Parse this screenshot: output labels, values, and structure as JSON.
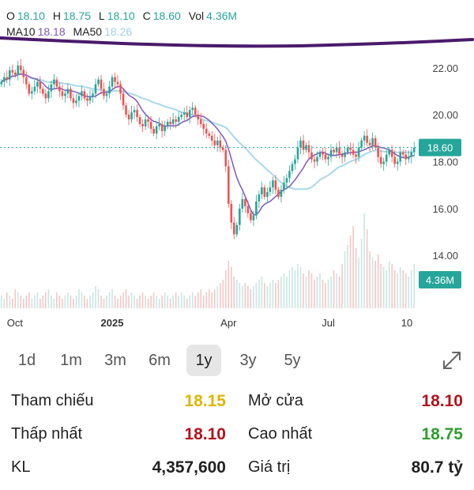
{
  "ohlc": {
    "o_label": "O",
    "o": "18.10",
    "h_label": "H",
    "h": "18.75",
    "l_label": "L",
    "l": "18.10",
    "c_label": "C",
    "c": "18.60",
    "vol_label": "Vol",
    "vol": "4.36M",
    "ma10_label": "MA10",
    "ma10": "18.18",
    "ma50_label": "MA50",
    "ma50": "18.26"
  },
  "colors": {
    "up": "#26a69a",
    "down": "#ef5350",
    "ma10": "#7e57c2",
    "ma50": "#a9d8ea",
    "annotation": "#4a1a6b"
  },
  "chart_data": {
    "type": "candlestick",
    "y_ticks": [
      "22.00",
      "20.00",
      "18.00",
      "16.00",
      "14.00"
    ],
    "ylim": [
      13.5,
      22.6
    ],
    "x_ticks": [
      "Oct",
      "2025",
      "Apr",
      "Jul",
      "10"
    ],
    "last_price_label": "18.60",
    "volume_label": "4.36M",
    "close": [
      21.4,
      21.6,
      21.5,
      21.9,
      21.8,
      21.7,
      22.1,
      21.9,
      21.6,
      21.3,
      20.9,
      21.0,
      21.2,
      21.4,
      21.1,
      20.9,
      20.7,
      21.0,
      21.3,
      21.5,
      21.2,
      21.0,
      20.8,
      20.9,
      21.1,
      20.7,
      20.5,
      20.6,
      20.8,
      21.0,
      20.7,
      20.6,
      20.8,
      20.9,
      21.3,
      21.5,
      21.1,
      20.8,
      20.9,
      21.2,
      21.6,
      21.4,
      21.3,
      20.9,
      20.4,
      20.0,
      19.8,
      20.1,
      20.2,
      19.9,
      19.6,
      19.5,
      19.8,
      19.7,
      19.4,
      19.2,
      19.5,
      19.6,
      19.3,
      19.5,
      19.7,
      19.6,
      19.8,
      19.7,
      19.9,
      20.0,
      20.1,
      19.9,
      20.2,
      20.3,
      20.0,
      19.8,
      19.6,
      19.4,
      19.2,
      19.1,
      18.9,
      18.7,
      18.9,
      18.6,
      18.5,
      17.8,
      16.2,
      15.4,
      14.9,
      15.3,
      16.0,
      16.4,
      16.1,
      15.8,
      15.5,
      15.7,
      16.3,
      16.6,
      16.9,
      16.5,
      16.7,
      16.9,
      17.2,
      16.8,
      16.5,
      16.8,
      17.1,
      17.3,
      17.6,
      17.9,
      18.1,
      18.6,
      18.9,
      18.5,
      18.7,
      18.4,
      18.1,
      18.0,
      18.2,
      18.4,
      18.3,
      18.1,
      18.2,
      18.5,
      18.4,
      18.6,
      18.3,
      18.2,
      18.4,
      18.6,
      18.5,
      18.3,
      18.2,
      18.6,
      18.9,
      19.1,
      18.8,
      18.7,
      19.0,
      18.6,
      18.2,
      17.9,
      18.0,
      18.3,
      18.5,
      18.2,
      17.9,
      18.0,
      18.4,
      18.3,
      18.1,
      18.2,
      18.4,
      18.6
    ],
    "volume": [
      0.4,
      0.3,
      0.5,
      0.4,
      0.3,
      0.6,
      0.5,
      0.4,
      0.3,
      0.4,
      0.5,
      0.3,
      0.4,
      0.5,
      0.3,
      0.4,
      0.5,
      0.6,
      0.4,
      0.3,
      0.5,
      0.4,
      0.3,
      0.4,
      0.5,
      0.4,
      0.3,
      0.4,
      0.6,
      0.5,
      0.4,
      0.3,
      0.4,
      0.5,
      0.7,
      0.6,
      0.4,
      0.3,
      0.4,
      0.5,
      0.6,
      0.4,
      0.3,
      0.4,
      0.5,
      0.6,
      0.4,
      0.5,
      0.4,
      0.3,
      0.4,
      0.5,
      0.4,
      0.3,
      0.4,
      0.5,
      0.4,
      0.3,
      0.4,
      0.5,
      0.4,
      0.3,
      0.4,
      0.5,
      0.4,
      0.5,
      0.4,
      0.3,
      0.4,
      0.5,
      0.4,
      0.5,
      0.6,
      0.4,
      0.5,
      0.6,
      0.5,
      0.6,
      0.7,
      0.8,
      0.9,
      1.2,
      1.5,
      1.3,
      1.0,
      0.9,
      0.8,
      0.7,
      0.8,
      0.7,
      0.6,
      0.7,
      0.8,
      0.9,
      1.0,
      0.8,
      0.7,
      0.8,
      0.9,
      0.8,
      0.9,
      1.0,
      1.1,
      1.0,
      1.2,
      1.3,
      1.2,
      1.4,
      1.3,
      1.1,
      1.0,
      1.2,
      1.1,
      0.9,
      1.0,
      1.1,
      0.9,
      0.8,
      0.9,
      1.0,
      1.2,
      1.1,
      1.0,
      1.4,
      1.8,
      2.0,
      2.3,
      2.6,
      1.9,
      1.6,
      2.2,
      3.0,
      2.5,
      1.8,
      1.6,
      1.5,
      1.7,
      1.4,
      1.3,
      1.2,
      1.5,
      1.4,
      1.2,
      1.1,
      1.3,
      1.2,
      1.1,
      1.0,
      1.2,
      1.4
    ]
  },
  "ranges": [
    "1d",
    "1m",
    "3m",
    "6m",
    "1y",
    "3y",
    "5y"
  ],
  "active_range": "1y",
  "stats": {
    "ref_label": "Tham chiếu",
    "ref_value": "18.15",
    "open_label": "Mở cửa",
    "open_value": "18.10",
    "low_label": "Thấp nhất",
    "low_value": "18.10",
    "high_label": "Cao nhất",
    "high_value": "18.75",
    "kl_label": "KL",
    "kl_value": "4,357,600",
    "gt_label": "Giá trị",
    "gt_value": "80.7 tỷ"
  }
}
